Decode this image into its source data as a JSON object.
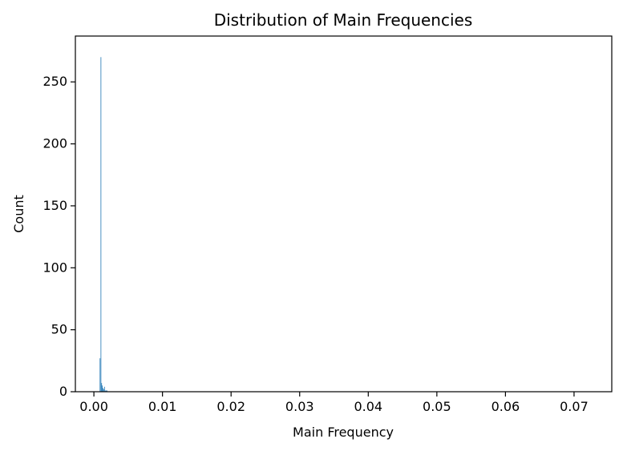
{
  "chart_data": {
    "type": "bar",
    "title": "Distribution of Main Frequencies",
    "xlabel": "Main Frequency",
    "ylabel": "Count",
    "xlim": [
      -0.0027,
      0.0755
    ],
    "ylim": [
      0,
      287
    ],
    "x_ticks": [
      {
        "value": 0.0,
        "label": "0.00"
      },
      {
        "value": 0.01,
        "label": "0.01"
      },
      {
        "value": 0.02,
        "label": "0.02"
      },
      {
        "value": 0.03,
        "label": "0.03"
      },
      {
        "value": 0.04,
        "label": "0.04"
      },
      {
        "value": 0.05,
        "label": "0.05"
      },
      {
        "value": 0.06,
        "label": "0.06"
      },
      {
        "value": 0.07,
        "label": "0.07"
      }
    ],
    "y_ticks": [
      {
        "value": 0,
        "label": "0"
      },
      {
        "value": 50,
        "label": "50"
      },
      {
        "value": 100,
        "label": "100"
      },
      {
        "value": 150,
        "label": "150"
      },
      {
        "value": 200,
        "label": "200"
      },
      {
        "value": 250,
        "label": "250"
      }
    ],
    "bar_color": "#1f77b4",
    "bins": [
      {
        "x": 0.00085,
        "count": 27
      },
      {
        "x": 0.00098,
        "count": 270
      },
      {
        "x": 0.00108,
        "count": 7
      },
      {
        "x": 0.00118,
        "count": 5
      },
      {
        "x": 0.00128,
        "count": 3
      },
      {
        "x": 0.00138,
        "count": 2
      },
      {
        "x": 0.0015,
        "count": 4
      },
      {
        "x": 0.00162,
        "count": 1
      },
      {
        "x": 0.00175,
        "count": 1
      },
      {
        "x": 0.00188,
        "count": 1
      }
    ],
    "bin_width": 8e-05,
    "grid": false
  }
}
